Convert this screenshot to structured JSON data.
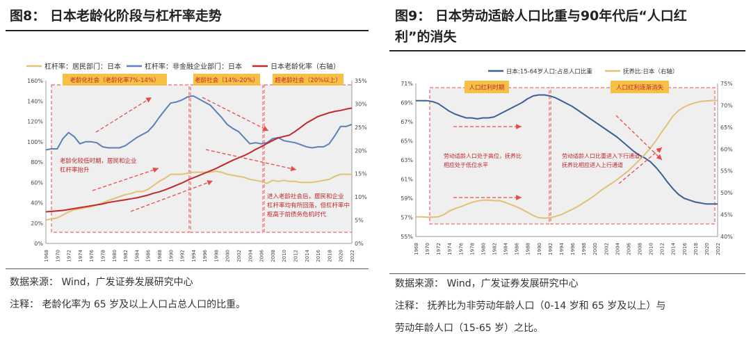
{
  "left": {
    "title": "图8：  日本老龄化阶段与杠杆率走势",
    "source": "数据来源：  Wind，广发证券发展研究中心",
    "note": "注释：  老龄化率为 65 岁及以上人口占总人口的比重。",
    "callouts": {
      "box1": "老龄化社会（老龄化率7%-14%）",
      "box2": "老龄社会（14%-20%）",
      "box3": "超老龄社会（20%以上）",
      "text1": [
        "老龄化较低时期，居民和企业",
        "杠杆率抬升"
      ],
      "text2": [
        "进入老龄社会后，居民和企业",
        "杠杆率均有所回落，但杠杆率中",
        "枢高于前债务危机时代"
      ]
    },
    "chart_data": {
      "type": "line",
      "x": [
        1968,
        1969,
        1970,
        1971,
        1972,
        1973,
        1974,
        1975,
        1976,
        1977,
        1978,
        1979,
        1980,
        1981,
        1982,
        1983,
        1984,
        1985,
        1986,
        1987,
        1988,
        1989,
        1990,
        1991,
        1992,
        1993,
        1994,
        1995,
        1996,
        1997,
        1998,
        1999,
        2000,
        2001,
        2002,
        2003,
        2004,
        2005,
        2006,
        2007,
        2008,
        2009,
        2010,
        2011,
        2012,
        2013,
        2014,
        2015,
        2016,
        2017,
        2018,
        2019,
        2020,
        2021,
        2022
      ],
      "xticks": [
        1968,
        1970,
        1972,
        1974,
        1976,
        1978,
        1980,
        1982,
        1984,
        1986,
        1988,
        1990,
        1992,
        1994,
        1996,
        1998,
        2000,
        2002,
        2004,
        2006,
        2008,
        2010,
        2012,
        2014,
        2016,
        2018,
        2020,
        2022
      ],
      "ylim_left": [
        0,
        160
      ],
      "yticks_left": [
        "0%",
        "20%",
        "40%",
        "60%",
        "80%",
        "100%",
        "120%",
        "140%",
        "160%"
      ],
      "ylim_right": [
        0,
        35
      ],
      "yticks_right": [
        "0%",
        "5%",
        "10%",
        "15%",
        "20%",
        "25%",
        "30%",
        "35%"
      ],
      "legend_position": "top",
      "series": [
        {
          "name": "杠杆率：居民部门：日本",
          "axis": "left",
          "color": "#e2c074",
          "values": [
            23,
            24,
            25,
            28,
            31,
            33,
            34,
            35,
            36,
            38,
            40,
            42,
            44,
            46,
            48,
            49,
            51,
            51,
            53,
            57,
            61,
            64,
            68,
            68,
            68,
            69,
            70,
            70,
            70,
            70,
            71,
            70,
            68,
            67,
            66,
            65,
            63,
            62,
            61,
            59,
            62,
            61,
            62,
            61,
            61,
            60,
            60,
            60,
            61,
            62,
            63,
            66,
            68,
            68,
            68
          ]
        },
        {
          "name": "杠杆率：非金融企业部门：日本",
          "axis": "left",
          "color": "#5b7fb8",
          "values": [
            92,
            93,
            93,
            103,
            109,
            105,
            98,
            100,
            100,
            99,
            95,
            94,
            94,
            94,
            96,
            100,
            104,
            107,
            110,
            116,
            124,
            131,
            138,
            139,
            141,
            144,
            145,
            142,
            139,
            136,
            130,
            124,
            117,
            113,
            110,
            104,
            98,
            99,
            98,
            99,
            103,
            104,
            101,
            100,
            99,
            97,
            95,
            94,
            95,
            95,
            98,
            106,
            115,
            115,
            117
          ]
        },
        {
          "name": "日本老龄化率（右轴）",
          "axis": "right",
          "color": "#c0272d",
          "values": [
            6.8,
            6.9,
            7.0,
            7.1,
            7.3,
            7.5,
            7.7,
            7.9,
            8.1,
            8.3,
            8.5,
            8.8,
            9.0,
            9.2,
            9.4,
            9.6,
            9.8,
            10.1,
            10.4,
            10.8,
            11.1,
            11.5,
            12.0,
            12.5,
            13.0,
            13.6,
            14.1,
            14.6,
            15.1,
            15.6,
            16.1,
            16.7,
            17.3,
            17.9,
            18.4,
            18.9,
            19.5,
            20.2,
            20.8,
            21.5,
            22.1,
            22.7,
            23.0,
            23.3,
            24.1,
            25.0,
            25.9,
            26.6,
            27.3,
            27.7,
            28.1,
            28.4,
            28.6,
            28.9,
            29.1
          ]
        }
      ]
    }
  },
  "right": {
    "title_line1": "图9：  日本劳动适龄人口比重与90年代后“人口红",
    "title_line2": "利”的消失",
    "source": "数据来源：  Wind，广发证券发展研究中心",
    "note_line1": "注释：  抚养比为非劳动年龄人口（0-14 岁和 65 岁及以上）与",
    "note_line2": "劳动年龄人口（15-65 岁）之比。",
    "callouts": {
      "box1": "人口红利时期",
      "box2": "人口红利逐渐消失",
      "text1": [
        "劳动适龄人口处于高位，抚养比",
        "相应处于低位水平"
      ],
      "text2": [
        "劳动适龄人口比重进入下行通道，",
        "抚养比相应进入上行通道"
      ]
    },
    "chart_data": {
      "type": "line",
      "x": [
        1968,
        1969,
        1970,
        1971,
        1972,
        1973,
        1974,
        1975,
        1976,
        1977,
        1978,
        1979,
        1980,
        1981,
        1982,
        1983,
        1984,
        1985,
        1986,
        1987,
        1988,
        1989,
        1990,
        1991,
        1992,
        1993,
        1994,
        1995,
        1996,
        1997,
        1998,
        1999,
        2000,
        2001,
        2002,
        2003,
        2004,
        2005,
        2006,
        2007,
        2008,
        2009,
        2010,
        2011,
        2012,
        2013,
        2014,
        2015,
        2016,
        2017,
        2018,
        2019,
        2020,
        2021,
        2022
      ],
      "xticks": [
        1968,
        1970,
        1972,
        1974,
        1976,
        1978,
        1980,
        1982,
        1984,
        1986,
        1988,
        1990,
        1992,
        1994,
        1996,
        1998,
        2000,
        2002,
        2004,
        2006,
        2008,
        2010,
        2012,
        2014,
        2016,
        2018,
        2020,
        2022
      ],
      "ylim_left": [
        55,
        71
      ],
      "yticks_left": [
        "55%",
        "57%",
        "59%",
        "61%",
        "63%",
        "65%",
        "67%",
        "69%",
        "71%"
      ],
      "ylim_right": [
        40,
        75
      ],
      "yticks_right": [
        "40%",
        "45%",
        "50%",
        "55%",
        "60%",
        "65%",
        "70%",
        "75%"
      ],
      "legend_position": "top",
      "series": [
        {
          "name": "日本:15-64岁人口:占总人口比重",
          "axis": "left",
          "color": "#3c5f96",
          "values": [
            69.2,
            69.2,
            69.2,
            69.1,
            68.9,
            68.5,
            68.1,
            67.8,
            67.6,
            67.4,
            67.4,
            67.3,
            67.4,
            67.4,
            67.5,
            67.8,
            68.1,
            68.4,
            68.7,
            69.0,
            69.4,
            69.7,
            69.8,
            69.8,
            69.7,
            69.5,
            69.2,
            68.9,
            68.6,
            68.2,
            67.8,
            67.4,
            67.0,
            66.6,
            66.2,
            65.8,
            65.4,
            64.9,
            64.4,
            63.9,
            63.5,
            63.2,
            62.8,
            62.2,
            61.5,
            60.7,
            60.0,
            59.4,
            59.0,
            58.8,
            58.6,
            58.5,
            58.4,
            58.4,
            58.4
          ]
        },
        {
          "name": "抚养比:日本（右轴）",
          "axis": "right",
          "color": "#e2c074",
          "values": [
            44.5,
            44.5,
            44.4,
            44.4,
            44.5,
            45.0,
            45.8,
            46.4,
            46.8,
            47.3,
            47.8,
            48.1,
            48.3,
            48.3,
            48.2,
            48.2,
            47.8,
            47.3,
            46.8,
            46.2,
            45.5,
            44.8,
            44.3,
            44.2,
            44.3,
            44.6,
            45.0,
            45.6,
            46.2,
            46.9,
            47.7,
            48.5,
            49.4,
            50.4,
            51.3,
            52.1,
            53.0,
            54.0,
            55.0,
            56.2,
            57.5,
            58.8,
            60.3,
            62.0,
            63.9,
            65.7,
            67.5,
            68.8,
            69.6,
            70.2,
            70.6,
            70.9,
            71.0,
            71.1,
            71.1
          ]
        }
      ]
    }
  }
}
